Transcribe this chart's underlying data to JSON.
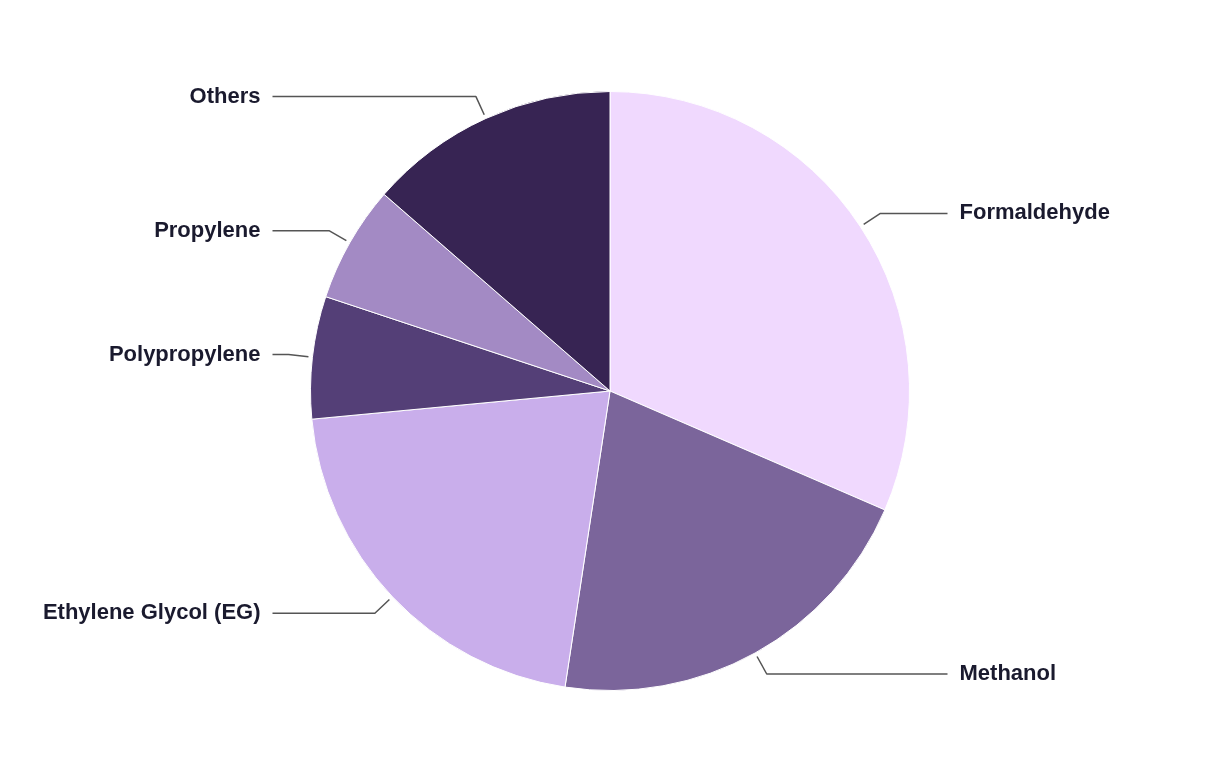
{
  "chart_data": {
    "type": "pie",
    "categories": [
      "Formaldehyde",
      "Methanol",
      "Ethylene Glycol (EG)",
      "Polypropylene",
      "Propylene",
      "Others"
    ],
    "values": [
      31.5,
      20.9,
      21.1,
      6.6,
      6.3,
      13.6
    ],
    "colors": [
      "#f0d9fe",
      "#7b659b",
      "#c9aeeb",
      "#543f77",
      "#a38ac4",
      "#372453"
    ],
    "legend": false
  }
}
